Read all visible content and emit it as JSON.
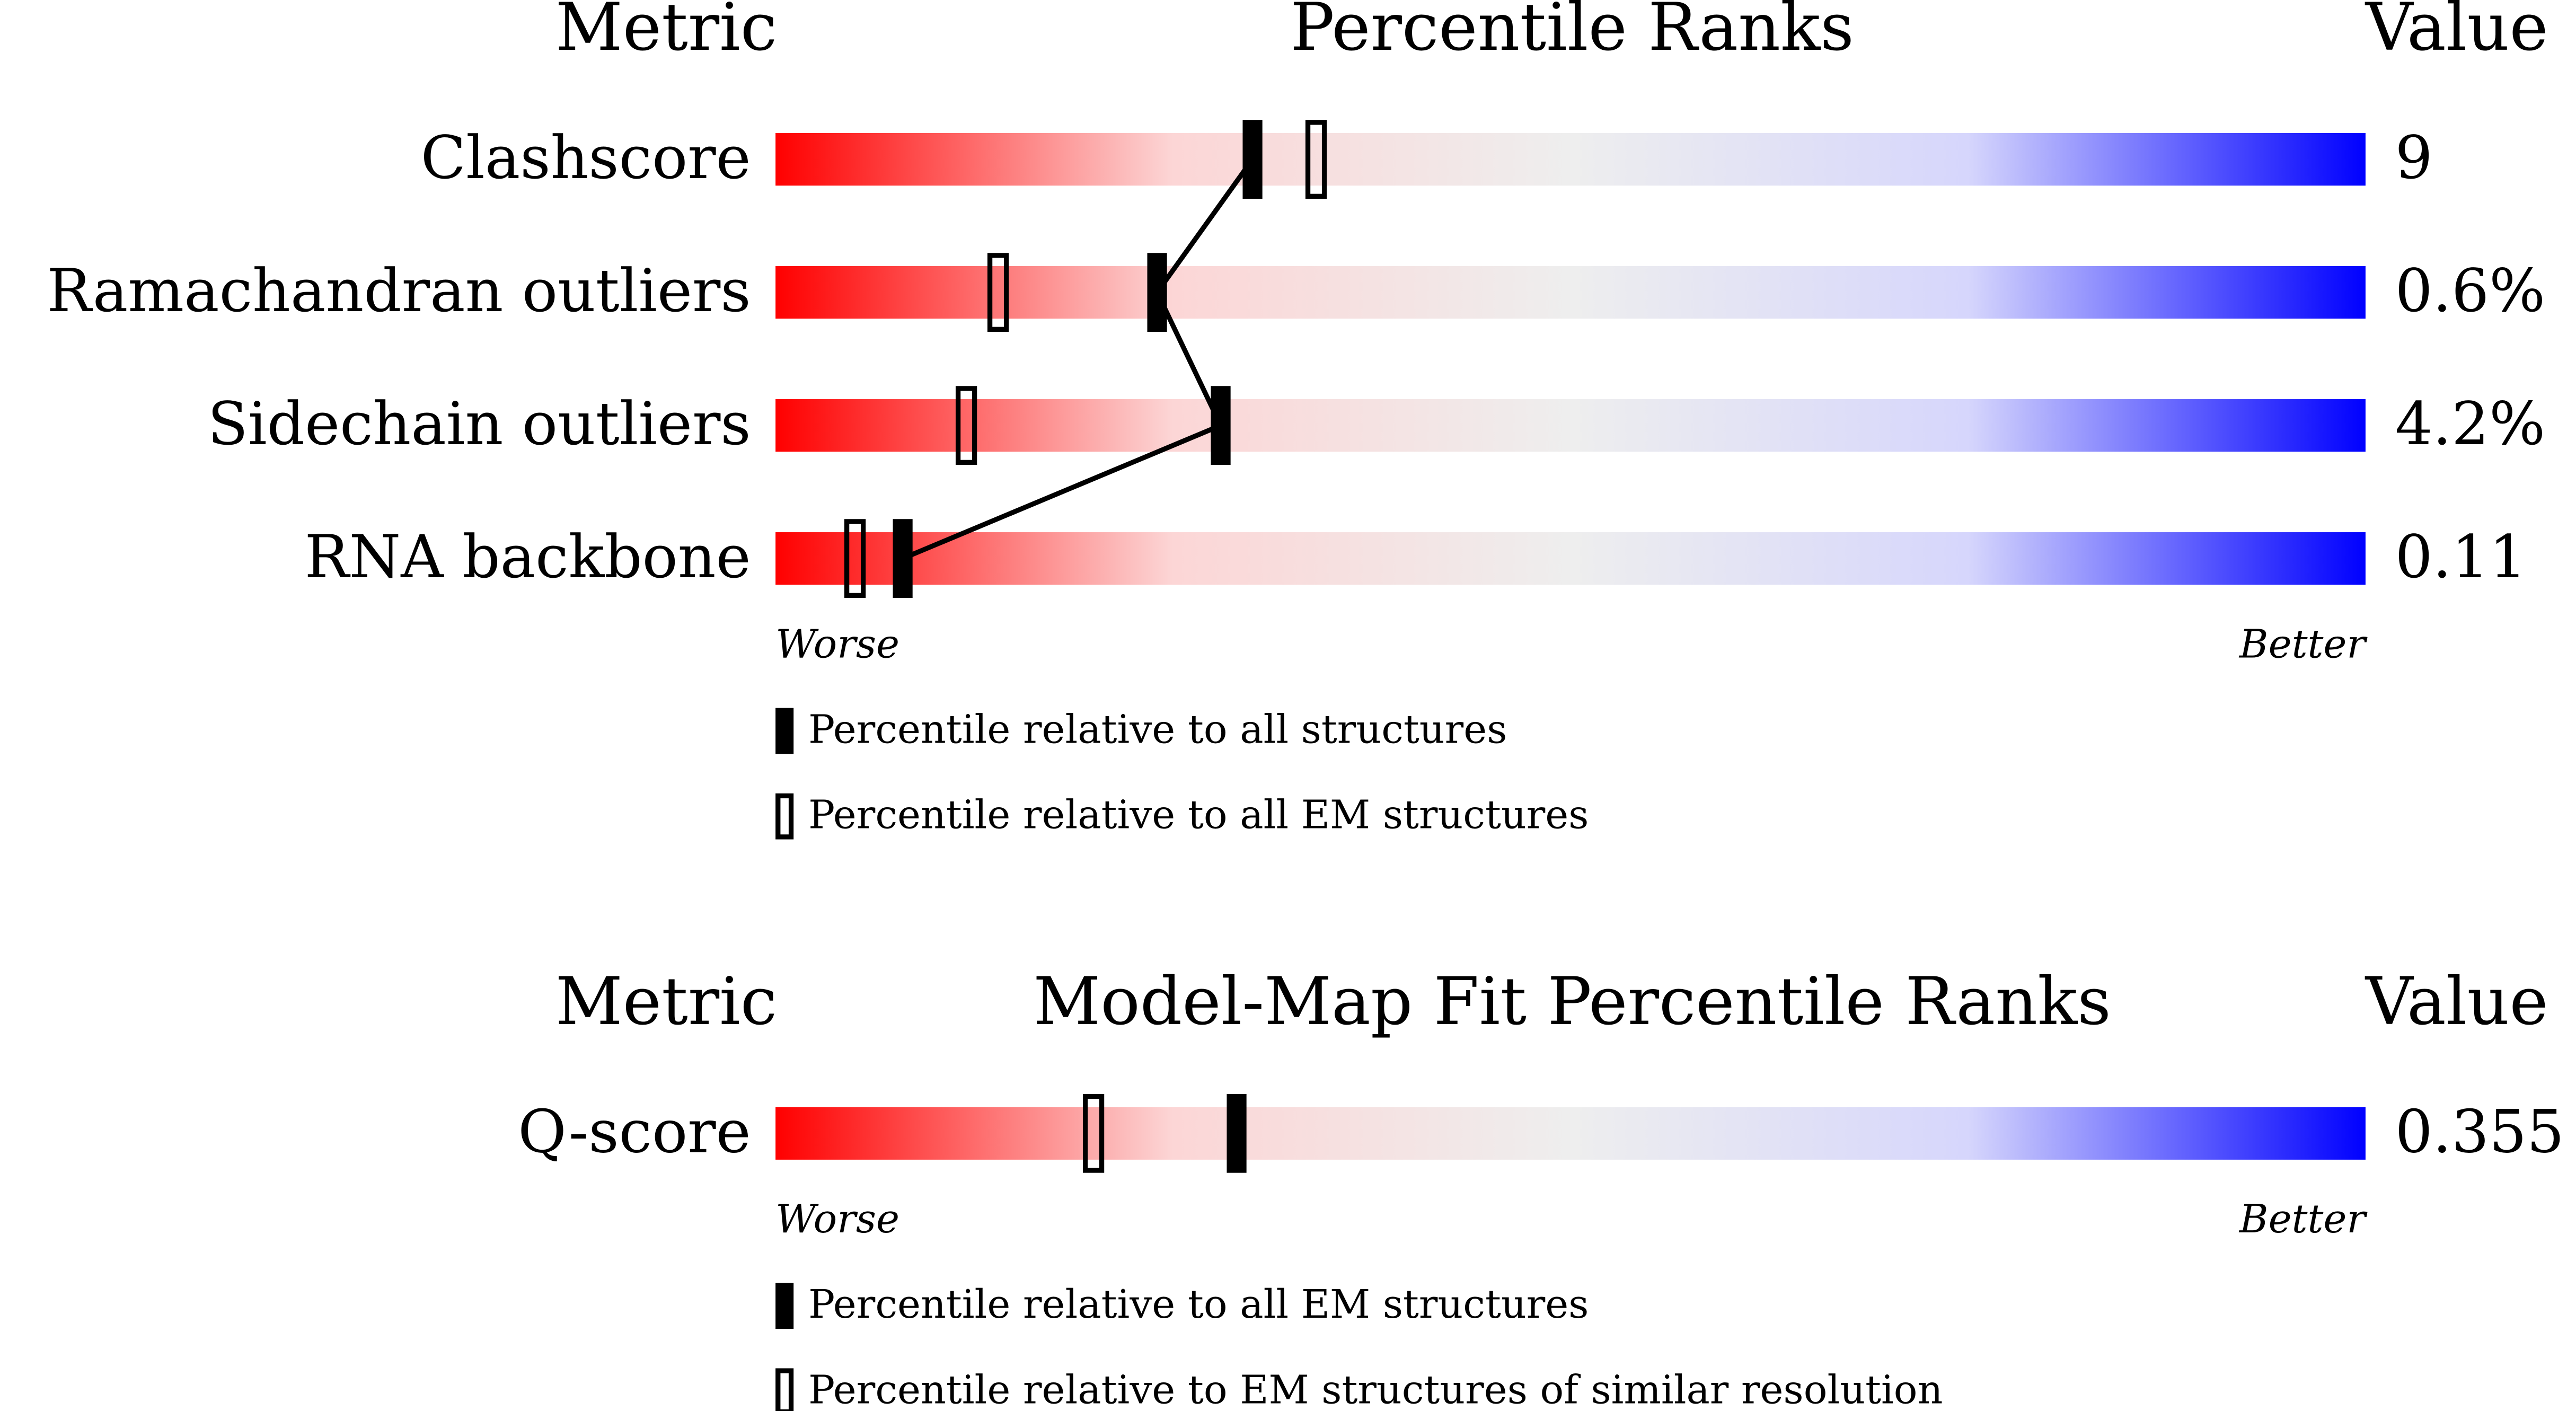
{
  "chart_data": [
    {
      "type": "percentile_slider",
      "metric_header": "Metric",
      "title": "Percentile Ranks",
      "value_header": "Value",
      "xlim": [
        0,
        100
      ],
      "colors": [
        "#ff0000",
        "#fcd6d6",
        "#eeeeee",
        "#d6d6fc",
        "#0000ff"
      ],
      "worse_label": "Worse",
      "better_label": "Better",
      "connect": true,
      "rows": [
        {
          "metric": "Clashscore",
          "value": 9,
          "percentile": 30,
          "percentile_alt": 34
        },
        {
          "metric": "Ramachandran outliers",
          "value": 0.6,
          "value_label": "0.6%",
          "percentile": 24,
          "percentile_alt": 14
        },
        {
          "metric": "Sidechain outliers",
          "value": 4.2,
          "value_label": "4.2%",
          "percentile": 28,
          "percentile_alt": 12
        },
        {
          "metric": "RNA backbone",
          "value": 0.11,
          "percentile": 8,
          "percentile_alt": 5
        }
      ],
      "legend": {
        "filled": "Percentile relative to all structures",
        "open": "Percentile relative to all EM structures"
      }
    },
    {
      "type": "percentile_slider",
      "metric_header": "Metric",
      "title": "Model-Map Fit Percentile Ranks",
      "value_header": "Value",
      "xlim": [
        0,
        100
      ],
      "colors": [
        "#ff0000",
        "#fcd6d6",
        "#eeeeee",
        "#d6d6fc",
        "#0000ff"
      ],
      "worse_label": "Worse",
      "better_label": "Better",
      "connect": false,
      "rows": [
        {
          "metric": "Q-score",
          "value": 0.355,
          "percentile": 29,
          "percentile_alt": 20
        }
      ],
      "legend": {
        "filled": "Percentile relative to all EM structures",
        "open": "Percentile relative to EM structures of similar resolution"
      }
    }
  ]
}
